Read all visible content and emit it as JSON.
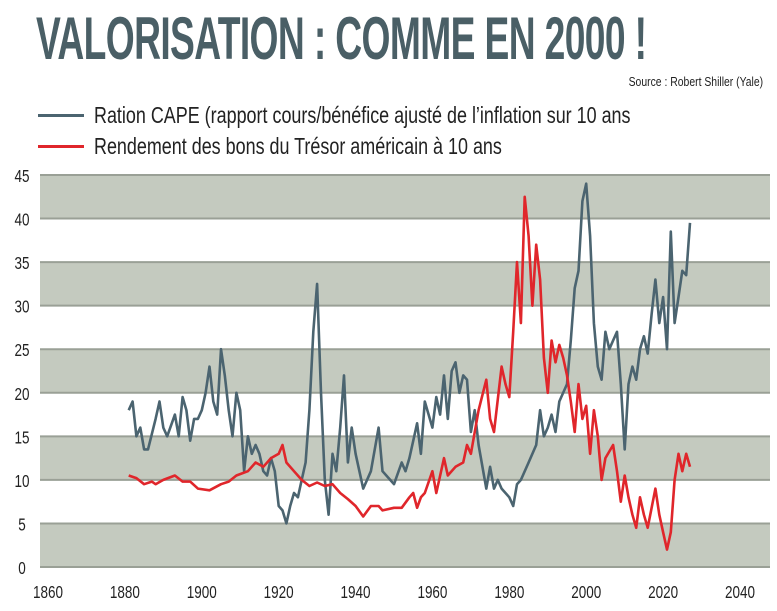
{
  "chart_data": {
    "type": "line",
    "title": "VALORISATION : COMME EN 2000 !",
    "source": "Source : Robert Shiller (Yale)",
    "xlabel": "",
    "ylabel": "",
    "xlim": [
      1860,
      2040
    ],
    "ylim": [
      0,
      45
    ],
    "xticks": [
      "1860",
      "1880",
      "1900",
      "1920",
      "1940",
      "1960",
      "1980",
      "2000",
      "2020",
      "2040"
    ],
    "yticks": [
      "0",
      "5",
      "10",
      "15",
      "20",
      "25",
      "30",
      "35",
      "40",
      "45"
    ],
    "legend_position": "top-left",
    "grid": "alternating horizontal bands",
    "series": [
      {
        "name": "Ration CAPE (rapport cours/bénéfice ajusté de l’inflation sur 10 ans",
        "color": "#4b6470",
        "points": [
          [
            1881,
            18
          ],
          [
            1882,
            19
          ],
          [
            1883,
            15
          ],
          [
            1884,
            16
          ],
          [
            1885,
            13.5
          ],
          [
            1886,
            13.5
          ],
          [
            1888,
            17
          ],
          [
            1889,
            19
          ],
          [
            1890,
            16
          ],
          [
            1891,
            15
          ],
          [
            1893,
            17.5
          ],
          [
            1894,
            15
          ],
          [
            1895,
            19.5
          ],
          [
            1896,
            18
          ],
          [
            1897,
            14.5
          ],
          [
            1898,
            17
          ],
          [
            1899,
            17
          ],
          [
            1900,
            18
          ],
          [
            1901,
            20
          ],
          [
            1902,
            23
          ],
          [
            1903,
            19
          ],
          [
            1904,
            17.5
          ],
          [
            1905,
            25
          ],
          [
            1906,
            22
          ],
          [
            1907,
            18
          ],
          [
            1908,
            15
          ],
          [
            1909,
            20
          ],
          [
            1910,
            18
          ],
          [
            1911,
            11
          ],
          [
            1912,
            15
          ],
          [
            1913,
            13
          ],
          [
            1914,
            14
          ],
          [
            1915,
            13
          ],
          [
            1916,
            11
          ],
          [
            1917,
            10.5
          ],
          [
            1918,
            12.5
          ],
          [
            1919,
            11
          ],
          [
            1920,
            7
          ],
          [
            1921,
            6.5
          ],
          [
            1922,
            5
          ],
          [
            1923,
            7
          ],
          [
            1924,
            8.5
          ],
          [
            1925,
            8
          ],
          [
            1926,
            10
          ],
          [
            1927,
            12
          ],
          [
            1928,
            18
          ],
          [
            1929,
            27
          ],
          [
            1930,
            32.5
          ],
          [
            1931,
            20
          ],
          [
            1932,
            10
          ],
          [
            1933,
            6
          ],
          [
            1934,
            13
          ],
          [
            1935,
            11
          ],
          [
            1936,
            16
          ],
          [
            1937,
            22
          ],
          [
            1938,
            12
          ],
          [
            1939,
            16
          ],
          [
            1940,
            13
          ],
          [
            1941,
            11
          ],
          [
            1942,
            9
          ],
          [
            1944,
            11
          ],
          [
            1946,
            16
          ],
          [
            1947,
            11
          ],
          [
            1949,
            10
          ],
          [
            1950,
            9.5
          ],
          [
            1952,
            12
          ],
          [
            1953,
            11
          ],
          [
            1954,
            12.5
          ],
          [
            1956,
            16.5
          ],
          [
            1957,
            13
          ],
          [
            1958,
            19
          ],
          [
            1960,
            16
          ],
          [
            1961,
            19.5
          ],
          [
            1962,
            17.5
          ],
          [
            1963,
            22
          ],
          [
            1964,
            17
          ],
          [
            1965,
            22.5
          ],
          [
            1966,
            23.5
          ],
          [
            1967,
            20
          ],
          [
            1968,
            22
          ],
          [
            1969,
            21.5
          ],
          [
            1970,
            15.5
          ],
          [
            1971,
            18
          ],
          [
            1972,
            14
          ],
          [
            1974,
            9
          ],
          [
            1975,
            11.5
          ],
          [
            1976,
            9
          ],
          [
            1977,
            10
          ],
          [
            1978,
            9
          ],
          [
            1980,
            8
          ],
          [
            1981,
            7
          ],
          [
            1982,
            9.5
          ],
          [
            1983,
            10
          ],
          [
            1985,
            12
          ],
          [
            1987,
            14
          ],
          [
            1988,
            18
          ],
          [
            1989,
            15
          ],
          [
            1990,
            16
          ],
          [
            1991,
            17.5
          ],
          [
            1992,
            15.5
          ],
          [
            1993,
            19
          ],
          [
            1995,
            21
          ],
          [
            1996,
            26
          ],
          [
            1997,
            32
          ],
          [
            1998,
            34
          ],
          [
            1999,
            42
          ],
          [
            2000,
            44
          ],
          [
            2001,
            38
          ],
          [
            2002,
            28
          ],
          [
            2003,
            23
          ],
          [
            2004,
            21.5
          ],
          [
            2005,
            27
          ],
          [
            2006,
            25
          ],
          [
            2007,
            26
          ],
          [
            2008,
            27
          ],
          [
            2009,
            21
          ],
          [
            2010,
            13.5
          ],
          [
            2011,
            21
          ],
          [
            2012,
            23
          ],
          [
            2013,
            21.5
          ],
          [
            2014,
            25
          ],
          [
            2015,
            26.5
          ],
          [
            2016,
            24.5
          ],
          [
            2017,
            29
          ],
          [
            2018,
            33
          ],
          [
            2019,
            28
          ],
          [
            2020,
            31
          ],
          [
            2021,
            25
          ],
          [
            2022,
            38.5
          ],
          [
            2023,
            28
          ],
          [
            2024,
            31
          ],
          [
            2025,
            34
          ],
          [
            2026,
            33.5
          ],
          [
            2027,
            39.5
          ]
        ]
      },
      {
        "name": "Rendement des bons du Trésor américain à 10 ans",
        "color": "#e0262b",
        "points": [
          [
            1881,
            10.5
          ],
          [
            1883,
            10.2
          ],
          [
            1885,
            9.5
          ],
          [
            1887,
            9.8
          ],
          [
            1888,
            9.5
          ],
          [
            1890,
            10
          ],
          [
            1893,
            10.5
          ],
          [
            1895,
            9.8
          ],
          [
            1897,
            9.8
          ],
          [
            1899,
            9
          ],
          [
            1902,
            8.8
          ],
          [
            1905,
            9.5
          ],
          [
            1907,
            9.8
          ],
          [
            1909,
            10.5
          ],
          [
            1912,
            11
          ],
          [
            1914,
            12
          ],
          [
            1916,
            11.5
          ],
          [
            1918,
            12.5
          ],
          [
            1920,
            13
          ],
          [
            1921,
            14
          ],
          [
            1922,
            12
          ],
          [
            1924,
            11
          ],
          [
            1926,
            10
          ],
          [
            1928,
            9.3
          ],
          [
            1930,
            9.7
          ],
          [
            1932,
            9.3
          ],
          [
            1934,
            9.5
          ],
          [
            1936,
            8.5
          ],
          [
            1938,
            7.8
          ],
          [
            1940,
            7
          ],
          [
            1942,
            5.8
          ],
          [
            1944,
            7
          ],
          [
            1946,
            7
          ],
          [
            1947,
            6.5
          ],
          [
            1950,
            6.8
          ],
          [
            1952,
            6.8
          ],
          [
            1954,
            8
          ],
          [
            1955,
            8.5
          ],
          [
            1956,
            6.8
          ],
          [
            1957,
            8
          ],
          [
            1958,
            8.5
          ],
          [
            1960,
            11
          ],
          [
            1961,
            8.5
          ],
          [
            1963,
            12.5
          ],
          [
            1964,
            10.5
          ],
          [
            1966,
            11.5
          ],
          [
            1968,
            12
          ],
          [
            1969,
            14
          ],
          [
            1970,
            13
          ],
          [
            1972,
            18
          ],
          [
            1974,
            21.5
          ],
          [
            1975,
            17
          ],
          [
            1976,
            15.5
          ],
          [
            1978,
            23
          ],
          [
            1979,
            21
          ],
          [
            1980,
            19.5
          ],
          [
            1981,
            27
          ],
          [
            1982,
            35
          ],
          [
            1983,
            28
          ],
          [
            1984,
            42.5
          ],
          [
            1985,
            38
          ],
          [
            1986,
            30
          ],
          [
            1987,
            37
          ],
          [
            1988,
            33
          ],
          [
            1989,
            24
          ],
          [
            1990,
            20
          ],
          [
            1991,
            26
          ],
          [
            1992,
            23.5
          ],
          [
            1993,
            25.5
          ],
          [
            1994,
            24
          ],
          [
            1995,
            22
          ],
          [
            1996,
            19
          ],
          [
            1997,
            15.5
          ],
          [
            1998,
            21
          ],
          [
            1999,
            17
          ],
          [
            2000,
            18.5
          ],
          [
            2001,
            13
          ],
          [
            2002,
            18
          ],
          [
            2003,
            15
          ],
          [
            2004,
            10
          ],
          [
            2005,
            12.5
          ],
          [
            2007,
            14
          ],
          [
            2008,
            11
          ],
          [
            2009,
            7.5
          ],
          [
            2010,
            10.5
          ],
          [
            2011,
            8
          ],
          [
            2012,
            6
          ],
          [
            2013,
            4.5
          ],
          [
            2014,
            8
          ],
          [
            2015,
            6
          ],
          [
            2016,
            4.5
          ],
          [
            2018,
            9
          ],
          [
            2019,
            6
          ],
          [
            2020,
            4
          ],
          [
            2021,
            2
          ],
          [
            2022,
            4
          ],
          [
            2023,
            10
          ],
          [
            2024,
            13
          ],
          [
            2025,
            11
          ],
          [
            2026,
            13
          ],
          [
            2027,
            11.5
          ]
        ]
      }
    ]
  }
}
